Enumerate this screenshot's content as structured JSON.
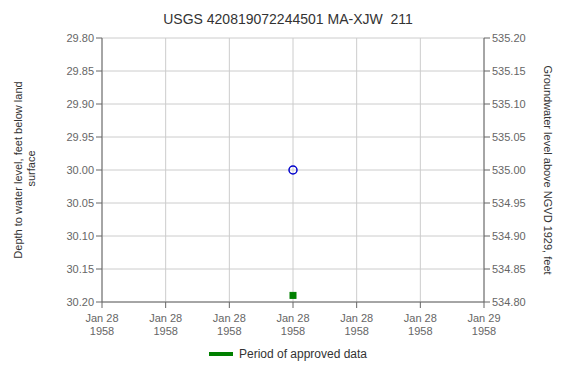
{
  "chart_data": {
    "type": "scatter",
    "title": "USGS 420819072244501 MA-XJW  211",
    "categories": [
      "Jan 28\n1958",
      "Jan 28\n1958",
      "Jan 28\n1958",
      "Jan 28\n1958",
      "Jan 28\n1958",
      "Jan 28\n1958",
      "Jan 29\n1958"
    ],
    "y_label": "Depth to water level, feet below land\n surface",
    "y2_label": "Groundwater level above NGVD 1929, feet",
    "ylim": [
      30.2,
      29.8
    ],
    "yticks": [
      {
        "value": 29.8,
        "label": "29.80"
      },
      29.85,
      {
        "value": 29.9,
        "label": "29.90"
      },
      29.95,
      {
        "value": 30.0,
        "label": "30.00"
      },
      30.05,
      {
        "value": 30.1,
        "label": "30.10"
      },
      30.15,
      {
        "value": 30.2,
        "label": "30.20"
      }
    ],
    "y2lim": [
      534.8,
      535.2
    ],
    "y2ticks": [
      {
        "value": 535.2,
        "label": "535.20"
      },
      535.15,
      {
        "value": 535.1,
        "label": "535.10"
      },
      535.05,
      {
        "value": 535.0,
        "label": "535.00"
      },
      534.95,
      {
        "value": 534.9,
        "label": "534.90"
      },
      534.85,
      {
        "value": 534.8,
        "label": "534.80"
      }
    ],
    "grid": true,
    "legend": "bottom",
    "series": [
      {
        "type": "scatter",
        "marker": "circle",
        "color": "#0000cc",
        "values": [
          null,
          null,
          null,
          30.0,
          null,
          null,
          null
        ]
      },
      {
        "type": "scatter",
        "marker": "square",
        "color": "#008000",
        "values": [
          null,
          null,
          null,
          30.19,
          null,
          null,
          null
        ]
      },
      {
        "name": "Period of approved data",
        "type": "line",
        "color": "#008000",
        "values": [
          null,
          null,
          null,
          null,
          null,
          null,
          null
        ]
      }
    ]
  }
}
